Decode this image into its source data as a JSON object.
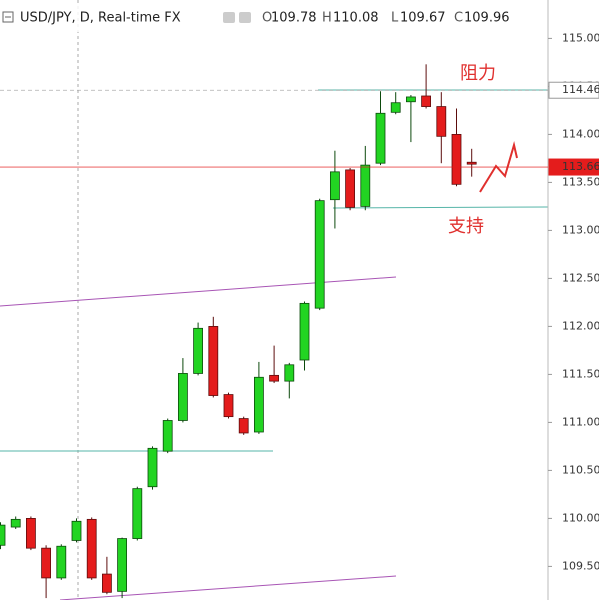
{
  "chart_data": {
    "type": "candlestick",
    "title": "USD/JPY, D, Real-time FX",
    "ohlc_header": [
      {
        "label": "O",
        "value": "109.78"
      },
      {
        "label": "H",
        "value": "110.08"
      },
      {
        "label": "L",
        "value": "109.67"
      },
      {
        "label": "C",
        "value": "109.96"
      }
    ],
    "annotations": [
      "阻力",
      "支持"
    ],
    "up_color": "#22d422",
    "down_color": "#e41c1c",
    "ylim": [
      109.15,
      115.4
    ],
    "yticks": [
      {
        "value": 109.5,
        "label": "109.50"
      },
      {
        "value": 110,
        "label": "110.00"
      },
      {
        "value": 110.5,
        "label": "110.50"
      },
      {
        "value": 111,
        "label": "111.00"
      },
      {
        "value": 111.5,
        "label": "111.50"
      },
      {
        "value": 112,
        "label": "112.00"
      },
      {
        "value": 112.5,
        "label": "112.50"
      },
      {
        "value": 113,
        "label": "113.00"
      },
      {
        "value": 113.5,
        "label": "113.50"
      },
      {
        "value": 114,
        "label": "114.00"
      },
      {
        "value": 114.5,
        "label": "114.50"
      },
      {
        "value": 115,
        "label": "115.00"
      }
    ],
    "price_markers": [
      {
        "value": 114.46,
        "color": "#9a9a9a"
      },
      {
        "value": 113.66,
        "color": "#e41c1c"
      }
    ],
    "open": [
      109.72,
      109.91,
      110.0,
      109.69,
      109.38,
      109.77,
      109.99,
      109.42,
      109.24,
      109.79,
      110.33,
      110.7,
      111.02,
      111.51,
      112.0,
      111.29,
      111.04,
      110.9,
      111.49,
      111.43,
      111.65,
      112.19,
      113.32,
      113.63,
      113.25,
      113.7,
      114.23,
      114.34,
      114.4,
      114.29,
      114.0,
      113.71
    ],
    "high": [
      109.96,
      110.02,
      110.02,
      109.72,
      109.73,
      110.0,
      110.01,
      109.6,
      109.8,
      110.33,
      110.75,
      111.04,
      111.67,
      112.04,
      112.1,
      111.31,
      111.06,
      111.63,
      111.8,
      111.62,
      112.26,
      113.33,
      113.83,
      113.65,
      113.88,
      114.45,
      114.44,
      114.41,
      114.73,
      114.44,
      114.27,
      113.85
    ],
    "low": [
      109.68,
      109.89,
      109.67,
      109.17,
      109.36,
      109.75,
      109.36,
      109.21,
      109.17,
      109.77,
      110.3,
      110.68,
      111.0,
      111.49,
      111.26,
      111.04,
      110.87,
      110.88,
      111.41,
      111.25,
      111.54,
      112.17,
      113.02,
      113.21,
      113.21,
      113.68,
      114.21,
      113.92,
      114.27,
      113.7,
      113.46,
      113.56
    ],
    "close": [
      109.93,
      109.99,
      109.69,
      109.38,
      109.71,
      109.97,
      109.38,
      109.23,
      109.79,
      110.31,
      110.73,
      111.02,
      111.51,
      111.98,
      111.28,
      111.06,
      110.89,
      111.47,
      111.43,
      111.6,
      112.24,
      113.31,
      113.61,
      113.24,
      113.68,
      114.22,
      114.33,
      114.39,
      114.29,
      113.98,
      113.48,
      113.69
    ]
  }
}
